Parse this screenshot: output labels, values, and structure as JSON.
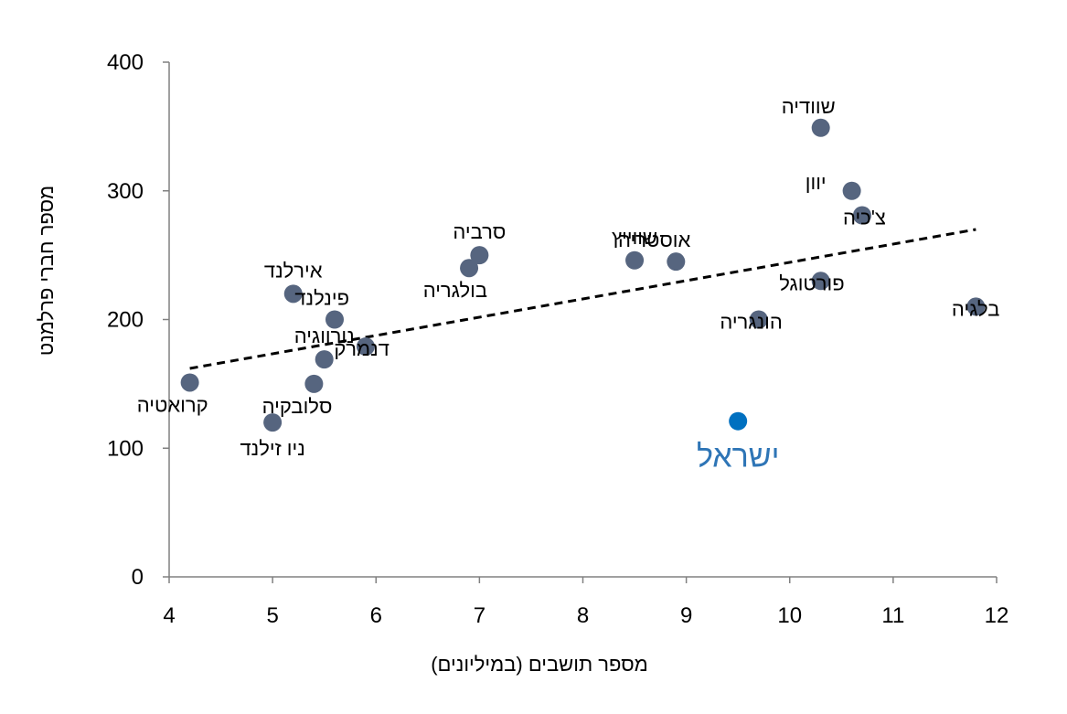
{
  "chart_data": {
    "type": "scatter",
    "xlabel": "מספר תושבים (במיליונים)",
    "ylabel": "מספר חברי פרלמנט",
    "xlim": [
      4,
      12
    ],
    "ylim": [
      0,
      400
    ],
    "xticks": [
      "4",
      "5",
      "6",
      "7",
      "8",
      "9",
      "10",
      "11",
      "12"
    ],
    "yticks": [
      "0",
      "100",
      "200",
      "300",
      "400"
    ],
    "trendline": {
      "style": "dashed",
      "x": [
        4.2,
        11.8
      ],
      "y": [
        162,
        270
      ]
    },
    "points": [
      {
        "label": "קרואטיה",
        "x": 4.2,
        "y": 151,
        "anchor": "below-right"
      },
      {
        "label": "ניו זילנד",
        "x": 5.0,
        "y": 120,
        "anchor": "below"
      },
      {
        "label": "אירלנד",
        "x": 5.2,
        "y": 220,
        "anchor": "above"
      },
      {
        "label": "סלובקיה",
        "x": 5.4,
        "y": 150,
        "anchor": "below-right"
      },
      {
        "label": "נורווגיה",
        "x": 5.5,
        "y": 169,
        "anchor": "above"
      },
      {
        "label": "פינלנד",
        "x": 5.6,
        "y": 200,
        "anchor": "above-right"
      },
      {
        "label": "דנמרק",
        "x": 5.9,
        "y": 179,
        "anchor": "right"
      },
      {
        "label": "בולגריה",
        "x": 6.9,
        "y": 240,
        "anchor": "below-right"
      },
      {
        "label": "סרביה",
        "x": 7.0,
        "y": 250,
        "anchor": "above"
      },
      {
        "label": "שווייץ",
        "x": 8.5,
        "y": 246,
        "anchor": "above"
      },
      {
        "label": "אוסטריה",
        "x": 8.9,
        "y": 245,
        "anchor": "above-right"
      },
      {
        "label": "הונגריה",
        "x": 9.7,
        "y": 200,
        "anchor": "right"
      },
      {
        "label": "ישראל",
        "x": 9.5,
        "y": 121,
        "anchor": "below",
        "highlight": true
      },
      {
        "label": "פורטוגל",
        "x": 10.3,
        "y": 230,
        "anchor": "right"
      },
      {
        "label": "שוודיה",
        "x": 10.3,
        "y": 349,
        "anchor": "above-right"
      },
      {
        "label": "יוון",
        "x": 10.6,
        "y": 300,
        "anchor": "above-left"
      },
      {
        "label": "צ'כיה",
        "x": 10.7,
        "y": 281,
        "anchor": "right"
      },
      {
        "label": "בלגיה",
        "x": 11.8,
        "y": 210,
        "anchor": "right"
      }
    ],
    "colors": {
      "point": "#56657F",
      "highlight": "#0070C0",
      "highlightLabel": "#2E75B6",
      "axis": "#808080",
      "trend": "#000000"
    }
  }
}
